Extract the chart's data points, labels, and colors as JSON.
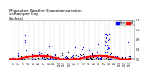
{
  "title": "Milwaukee Weather Evapotranspiration\nvs Rain per Day\n(Inches)",
  "title_fontsize": 3.0,
  "legend_labels": [
    "Rain",
    "ET"
  ],
  "legend_colors": [
    "#0000ff",
    "#ff0000"
  ],
  "x_ticks_labels": [
    "1/1",
    "2/1",
    "3/1",
    "4/1",
    "5/1",
    "6/1",
    "7/1",
    "8/1",
    "9/1",
    "10/1",
    "11/1",
    "12/1",
    "1/1",
    "2/1",
    "3/1",
    "4/1",
    "5/1",
    "6/1",
    "7/1",
    "8/1",
    "9/1",
    "10/1",
    "11/1",
    "12/1"
  ],
  "vline_positions": [
    31,
    59,
    90,
    120,
    151,
    181,
    212,
    243,
    273,
    304,
    334,
    365,
    396,
    424,
    455,
    485,
    516,
    546,
    577,
    608,
    638,
    669,
    699,
    730
  ],
  "background_color": "#ffffff",
  "rain_color": "#0000ff",
  "et_color": "#ff0000",
  "black_color": "#000000",
  "point_size": 0.8,
  "ylim": [
    0,
    1.6
  ],
  "xlim": [
    0,
    760
  ],
  "n_days": 730
}
